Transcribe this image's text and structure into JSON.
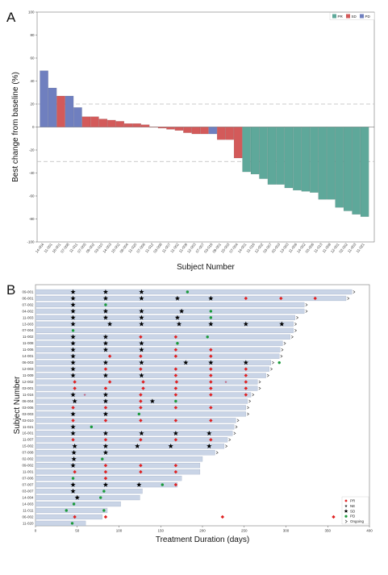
{
  "chart_data": [
    {
      "type": "bar",
      "panel_label": "A",
      "xlabel": "Subject Number",
      "ylabel": "Best change from baseline (%)",
      "ylim": [
        -100,
        100
      ],
      "yticks": [
        -100,
        -80,
        -60,
        -40,
        -20,
        0,
        20,
        40,
        60,
        80,
        100
      ],
      "reference_lines": [
        20,
        -30
      ],
      "legend": [
        "PR",
        "SD",
        "PD"
      ],
      "legend_position": "top-right",
      "colors": {
        "PR": "#5ea89a",
        "SD": "#d35a5a",
        "PD": "#6f7fbf"
      },
      "categories": [
        "14-004",
        "11-001",
        "16-001",
        "07-008",
        "11-011",
        "07-005",
        "09-002",
        "03-010",
        "14-003",
        "15-002",
        "06-004",
        "11-020",
        "07-006",
        "11-012",
        "03-008",
        "11-007",
        "11-002",
        "11-009",
        "12-003",
        "07-007",
        "03-016",
        "09-001",
        "15-003",
        "07-004",
        "14-001",
        "11-016",
        "12-002",
        "03-007",
        "03-003",
        "13-003",
        "11-006",
        "14-002",
        "03-006",
        "11-013",
        "11-008",
        "12-001",
        "02-002",
        "11-003",
        "11-021"
      ],
      "values": [
        49,
        34,
        27,
        27,
        17,
        9,
        9,
        7,
        6,
        5,
        3,
        3,
        2,
        0,
        -1,
        -2,
        -3,
        -5,
        -6,
        -6,
        -6,
        -11,
        -11,
        -27,
        -39,
        -41,
        -45,
        -50,
        -50,
        -53,
        -55,
        -56,
        -57,
        -63,
        -63,
        -70,
        -73,
        -76,
        -78
      ],
      "status": [
        "PD",
        "PD",
        "SD",
        "PD",
        "PD",
        "SD",
        "SD",
        "SD",
        "SD",
        "SD",
        "SD",
        "SD",
        "SD",
        "SD",
        "SD",
        "SD",
        "SD",
        "SD",
        "SD",
        "SD",
        "PD",
        "SD",
        "SD",
        "SD",
        "PR",
        "PR",
        "PR",
        "PR",
        "PR",
        "PR",
        "PR",
        "PR",
        "PR",
        "PR",
        "PR",
        "PR",
        "PR",
        "PR",
        "PR"
      ]
    },
    {
      "type": "bar",
      "orientation": "horizontal",
      "panel_label": "B",
      "xlabel": "Treatment Duration (days)",
      "ylabel": "Subject Number",
      "xlim": [
        0,
        400
      ],
      "xticks": [
        0,
        50,
        100,
        150,
        200,
        250,
        300,
        350,
        400
      ],
      "legend": [
        "PR",
        "NE",
        "SD",
        "PD",
        "Ongoing"
      ],
      "legend_position": "bottom-right",
      "legend_colors": {
        "PR": "#e02020",
        "NE": "#333333",
        "SD": "#000000",
        "PD": "#1a9a3a",
        "Ongoing": "#333333"
      },
      "subjects": [
        {
          "id": "09-001",
          "duration": 379,
          "ongoing": true,
          "events": [
            [
              "SD",
              45
            ],
            [
              "SD",
              84
            ],
            [
              "SD",
              127
            ],
            [
              "PD",
              182
            ]
          ]
        },
        {
          "id": "06-001",
          "duration": 372,
          "ongoing": true,
          "events": [
            [
              "SD",
              45
            ],
            [
              "SD",
              84
            ],
            [
              "SD",
              127
            ],
            [
              "SD",
              170
            ],
            [
              "SD",
              210
            ],
            [
              "PR",
              252
            ],
            [
              "PR",
              294
            ],
            [
              "PR",
              335
            ]
          ]
        },
        {
          "id": "07-002",
          "duration": 322,
          "ongoing": true,
          "events": [
            [
              "SD",
              45
            ],
            [
              "PD",
              84
            ]
          ]
        },
        {
          "id": "04-002",
          "duration": 322,
          "ongoing": true,
          "events": [
            [
              "SD",
              45
            ],
            [
              "SD",
              84
            ],
            [
              "SD",
              127
            ],
            [
              "SD",
              175
            ],
            [
              "PD",
              210
            ]
          ]
        },
        {
          "id": "11-003",
          "duration": 311,
          "ongoing": true,
          "events": [
            [
              "SD",
              45
            ],
            [
              "SD",
              84
            ],
            [
              "SD",
              127
            ],
            [
              "SD",
              170
            ],
            [
              "PD",
              210
            ]
          ]
        },
        {
          "id": "13-003",
          "duration": 309,
          "ongoing": true,
          "events": [
            [
              "SD",
              45
            ],
            [
              "SD",
              89
            ],
            [
              "SD",
              127
            ],
            [
              "SD",
              172
            ],
            [
              "SD",
              210
            ],
            [
              "SD",
              252
            ],
            [
              "SD",
              295
            ]
          ]
        },
        {
          "id": "07-004",
          "duration": 309,
          "ongoing": true,
          "events": [
            [
              "PD",
              45
            ]
          ]
        },
        {
          "id": "11-002",
          "duration": 305,
          "ongoing": true,
          "events": [
            [
              "SD",
              45
            ],
            [
              "SD",
              84
            ],
            [
              "PR",
              126
            ],
            [
              "PR",
              168
            ],
            [
              "PD",
              206
            ]
          ]
        },
        {
          "id": "11-008",
          "duration": 296,
          "ongoing": true,
          "events": [
            [
              "SD",
              45
            ],
            [
              "SD",
              84
            ],
            [
              "SD",
              127
            ],
            [
              "PD",
              170
            ]
          ]
        },
        {
          "id": "11-006",
          "duration": 293,
          "ongoing": true,
          "events": [
            [
              "SD",
              45
            ],
            [
              "SD",
              84
            ],
            [
              "SD",
              127
            ],
            [
              "PR",
              168
            ],
            [
              "PR",
              210
            ]
          ]
        },
        {
          "id": "14-001",
          "duration": 292,
          "ongoing": true,
          "events": [
            [
              "SD",
              45
            ],
            [
              "PR",
              89
            ],
            [
              "PR",
              126
            ],
            [
              "PR",
              168
            ],
            [
              "PR",
              210
            ]
          ]
        },
        {
          "id": "06-003",
          "duration": 282,
          "ongoing": true,
          "events": [
            [
              "SD",
              45
            ],
            [
              "SD",
              84
            ],
            [
              "SD",
              127
            ],
            [
              "SD",
              180
            ],
            [
              "SD",
              210
            ],
            [
              "SD",
              252
            ],
            [
              "PD",
              292
            ]
          ]
        },
        {
          "id": "12-003",
          "duration": 280,
          "ongoing": true,
          "events": [
            [
              "SD",
              45
            ],
            [
              "PR",
              84
            ],
            [
              "PR",
              126
            ],
            [
              "PR",
              168
            ],
            [
              "PR",
              210
            ],
            [
              "PR",
              252
            ]
          ]
        },
        {
          "id": "11-009",
          "duration": 276,
          "ongoing": true,
          "events": [
            [
              "SD",
              45
            ],
            [
              "SD",
              84
            ],
            [
              "SD",
              127
            ],
            [
              "PR",
              168
            ],
            [
              "PR",
              210
            ],
            [
              "PR",
              252
            ]
          ]
        },
        {
          "id": "12-002",
          "duration": 266,
          "ongoing": true,
          "events": [
            [
              "PR",
              47
            ],
            [
              "PR",
              89
            ],
            [
              "PR",
              129
            ],
            [
              "PR",
              169
            ],
            [
              "PR",
              210
            ],
            [
              "NE",
              228
            ],
            [
              "PR",
              252
            ]
          ]
        },
        {
          "id": "03-001",
          "duration": 266,
          "ongoing": true,
          "events": [
            [
              "PR",
              47
            ],
            [
              "PR",
              84
            ],
            [
              "PR",
              129
            ],
            [
              "PR",
              168
            ],
            [
              "PR",
              210
            ],
            [
              "PR",
              252
            ]
          ]
        },
        {
          "id": "11-016",
          "duration": 258,
          "ongoing": true,
          "events": [
            [
              "SD",
              45
            ],
            [
              "NE",
              59
            ],
            [
              "SD",
              84
            ],
            [
              "PR",
              126
            ],
            [
              "PR",
              168
            ],
            [
              "PR",
              210
            ],
            [
              "PR",
              252
            ]
          ]
        },
        {
          "id": "06-004",
          "duration": 254,
          "ongoing": true,
          "events": [
            [
              "SD",
              47
            ],
            [
              "SD",
              84
            ],
            [
              "PR",
              126
            ],
            [
              "SD",
              140
            ],
            [
              "PD",
              168
            ]
          ]
        },
        {
          "id": "03-006",
          "duration": 252,
          "ongoing": true,
          "events": [
            [
              "PR",
              45
            ],
            [
              "PR",
              84
            ],
            [
              "PR",
              126
            ],
            [
              "PR",
              168
            ],
            [
              "PR",
              210
            ]
          ]
        },
        {
          "id": "03-003",
          "duration": 252,
          "ongoing": true,
          "events": [
            [
              "SD",
              45
            ],
            [
              "SD",
              84
            ],
            [
              "PD",
              124
            ]
          ]
        },
        {
          "id": "03-010",
          "duration": 240,
          "ongoing": true,
          "events": [
            [
              "PR",
              45
            ],
            [
              "PR",
              84
            ],
            [
              "PR",
              126
            ],
            [
              "PR",
              168
            ],
            [
              "PR",
              210
            ]
          ]
        },
        {
          "id": "11-021",
          "duration": 238,
          "ongoing": true,
          "events": [
            [
              "SD",
              45
            ],
            [
              "PD",
              67
            ]
          ]
        },
        {
          "id": "16-001",
          "duration": 236,
          "ongoing": true,
          "events": [
            [
              "SD",
              45
            ],
            [
              "SD",
              84
            ],
            [
              "SD",
              127
            ],
            [
              "SD",
              168
            ],
            [
              "SD",
              208
            ]
          ]
        },
        {
          "id": "11-007",
          "duration": 230,
          "ongoing": true,
          "events": [
            [
              "PR",
              45
            ],
            [
              "PR",
              84
            ],
            [
              "PR",
              126
            ],
            [
              "PR",
              168
            ],
            [
              "PR",
              210
            ]
          ]
        },
        {
          "id": "15-002",
          "duration": 226,
          "ongoing": true,
          "events": [
            [
              "SD",
              47
            ],
            [
              "SD",
              84
            ],
            [
              "SD",
              122
            ],
            [
              "SD",
              162
            ],
            [
              "SD",
              208
            ]
          ]
        },
        {
          "id": "07-008",
          "duration": 215,
          "ongoing": true,
          "events": [
            [
              "SD",
              46
            ],
            [
              "SD",
              84
            ]
          ]
        },
        {
          "id": "02-002",
          "duration": 200,
          "ongoing": false,
          "events": [
            [
              "SD",
              46
            ],
            [
              "PD",
              80
            ]
          ]
        },
        {
          "id": "09-002",
          "duration": 197,
          "ongoing": false,
          "events": [
            [
              "SD",
              45
            ],
            [
              "PR",
              84
            ],
            [
              "PR",
              126
            ],
            [
              "PR",
              168
            ]
          ]
        },
        {
          "id": "11-001",
          "duration": 197,
          "ongoing": false,
          "events": [
            [
              "PR",
              47
            ],
            [
              "PR",
              84
            ],
            [
              "PR",
              126
            ],
            [
              "PR",
              168
            ]
          ]
        },
        {
          "id": "07-006",
          "duration": 175,
          "ongoing": false,
          "events": [
            [
              "PD",
              45
            ],
            [
              "PR",
              84
            ]
          ]
        },
        {
          "id": "07-007",
          "duration": 170,
          "ongoing": false,
          "events": [
            [
              "SD",
              45
            ],
            [
              "SD",
              84
            ],
            [
              "SD",
              124
            ],
            [
              "PD",
              152
            ],
            [
              "PR",
              168
            ]
          ]
        },
        {
          "id": "03-007",
          "duration": 128,
          "ongoing": false,
          "events": [
            [
              "SD",
              45
            ],
            [
              "PD",
              82
            ]
          ]
        },
        {
          "id": "14-004",
          "duration": 125,
          "ongoing": false,
          "events": [
            [
              "SD",
              50
            ],
            [
              "PD",
              78
            ]
          ]
        },
        {
          "id": "14-003",
          "duration": 102,
          "ongoing": false,
          "events": [
            [
              "PD",
              46
            ]
          ]
        },
        {
          "id": "11-011",
          "duration": 86,
          "ongoing": false,
          "events": [
            [
              "PD",
              37
            ],
            [
              "PD",
              82
            ]
          ]
        },
        {
          "id": "06-002",
          "duration": 80,
          "ongoing": false,
          "events": [
            [
              "PR",
              47
            ],
            [
              "PR",
              84
            ],
            [
              "PR",
              224
            ],
            [
              "PR",
              357
            ]
          ]
        },
        {
          "id": "11-020",
          "duration": 60,
          "ongoing": false,
          "events": [
            [
              "PD",
              44
            ]
          ]
        }
      ]
    }
  ]
}
